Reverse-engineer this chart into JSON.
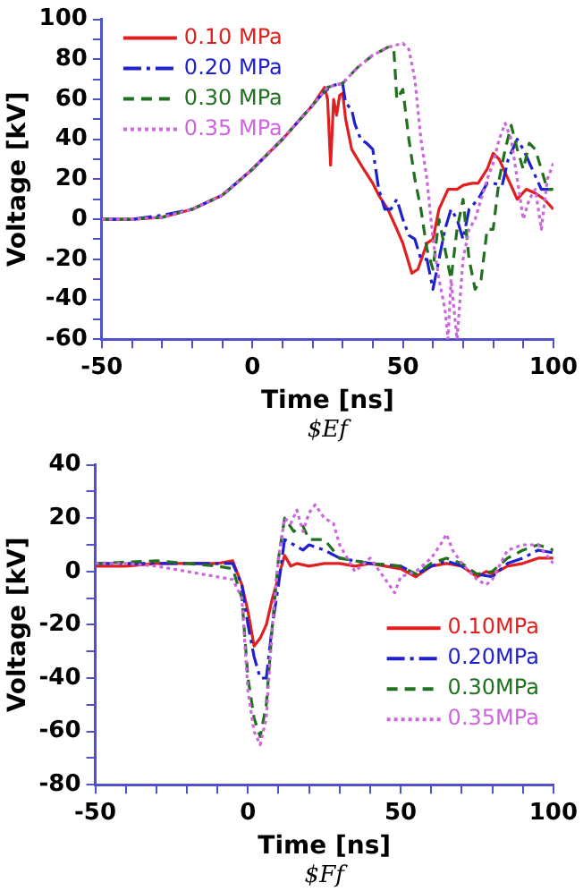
{
  "chart_data": [
    {
      "type": "line",
      "xlabel": "Time [ns]",
      "ylabel": "Voltage [kV]",
      "annotations": [
        "$Ef"
      ],
      "legend": "top left",
      "grid": false,
      "marker": "none",
      "xlim": [
        -50,
        100
      ],
      "xticks": [
        -50,
        {
          "value": -40,
          "label": null
        },
        {
          "value": -30,
          "label": null
        },
        {
          "value": -20,
          "label": null
        },
        {
          "value": -10,
          "label": null
        },
        0,
        {
          "value": 10,
          "label": null
        },
        {
          "value": 20,
          "label": null
        },
        {
          "value": 30,
          "label": null
        },
        {
          "value": 40,
          "label": null
        },
        50,
        {
          "value": 60,
          "label": null
        },
        {
          "value": 70,
          "label": null
        },
        {
          "value": 80,
          "label": null
        },
        {
          "value": 90,
          "label": null
        },
        100
      ],
      "ylim": [
        -60,
        100
      ],
      "yticks": [
        -60,
        {
          "value": -50,
          "label": null
        },
        -40,
        {
          "value": -30,
          "label": null
        },
        -20,
        {
          "value": -10,
          "label": null
        },
        0,
        {
          "value": 10,
          "label": null
        },
        20,
        {
          "value": 30,
          "label": null
        },
        40,
        {
          "value": 50,
          "label": null
        },
        60,
        {
          "value": 70,
          "label": null
        },
        80,
        {
          "value": 90,
          "label": null
        },
        100
      ],
      "series": [
        {
          "name": "0.10 MPa",
          "color": "#e02020",
          "line_style": "solid",
          "x": [
            -50,
            -40,
            -30,
            -20,
            -10,
            0,
            10,
            20,
            24,
            25,
            26,
            27,
            28,
            29,
            30,
            31,
            33,
            35,
            37,
            40,
            42,
            45,
            48,
            50,
            53,
            55,
            58,
            60,
            62,
            65,
            68,
            70,
            73,
            75,
            78,
            80,
            82,
            85,
            88,
            91,
            94,
            97,
            100
          ],
          "values": [
            0,
            0,
            1,
            5,
            12,
            25,
            40,
            57,
            66,
            60,
            27,
            60,
            52,
            62,
            63,
            50,
            35,
            30,
            25,
            18,
            12,
            5,
            -5,
            -12,
            -27,
            -25,
            -12,
            -10,
            5,
            15,
            15,
            17,
            18,
            18,
            25,
            33,
            30,
            20,
            10,
            15,
            13,
            10,
            5
          ]
        },
        {
          "name": "0.20 MPa",
          "color": "#2020cc",
          "line_style": "dashdot",
          "x": [
            -50,
            -40,
            -30,
            -20,
            -10,
            0,
            10,
            20,
            24,
            27,
            30,
            31,
            33,
            34,
            36,
            38,
            40,
            42,
            44,
            46,
            48,
            50,
            52,
            54,
            56,
            58,
            60,
            62,
            64,
            66,
            68,
            70,
            72,
            75,
            78,
            80,
            83,
            85,
            88,
            90,
            93,
            96,
            100
          ],
          "values": [
            0,
            0,
            2,
            5,
            12,
            25,
            40,
            57,
            64,
            67,
            68,
            58,
            55,
            48,
            40,
            38,
            35,
            15,
            5,
            5,
            10,
            0,
            -8,
            -10,
            -20,
            -20,
            -35,
            -20,
            -5,
            5,
            0,
            -10,
            5,
            10,
            18,
            18,
            17,
            30,
            40,
            35,
            25,
            15,
            15
          ]
        },
        {
          "name": "0.30 MPa",
          "color": "#207020",
          "line_style": "dashed",
          "x": [
            -50,
            -40,
            -30,
            -20,
            -10,
            0,
            10,
            20,
            25,
            30,
            35,
            40,
            45,
            47,
            48,
            50,
            52,
            54,
            56,
            58,
            60,
            62,
            64,
            66,
            68,
            70,
            72,
            74,
            76,
            78,
            80,
            82,
            84,
            86,
            88,
            90,
            92,
            94,
            96,
            98,
            100
          ],
          "values": [
            0,
            0,
            1,
            5,
            12,
            25,
            40,
            57,
            66,
            68,
            76,
            82,
            86,
            85,
            60,
            65,
            40,
            20,
            5,
            -15,
            -25,
            0,
            -15,
            -30,
            -5,
            10,
            -20,
            -35,
            -30,
            -5,
            -5,
            20,
            35,
            47,
            35,
            25,
            38,
            35,
            25,
            15,
            15
          ]
        },
        {
          "name": "0.35 MPa",
          "color": "#cc66dd",
          "line_style": "dotted",
          "x": [
            -50,
            -40,
            -30,
            -20,
            -10,
            0,
            10,
            20,
            25,
            30,
            35,
            40,
            45,
            50,
            52,
            54,
            56,
            58,
            60,
            62,
            64,
            65,
            66,
            68,
            70,
            72,
            74,
            76,
            78,
            80,
            82,
            84,
            86,
            88,
            90,
            92,
            94,
            96,
            98,
            100
          ],
          "values": [
            0,
            0,
            1,
            5,
            12,
            25,
            40,
            57,
            66,
            68,
            76,
            82,
            86,
            88,
            85,
            70,
            40,
            20,
            -10,
            -30,
            -45,
            -60,
            -30,
            -60,
            -20,
            -5,
            0,
            10,
            20,
            28,
            40,
            48,
            40,
            20,
            0,
            10,
            15,
            -5,
            20,
            28
          ]
        }
      ]
    },
    {
      "type": "line",
      "xlabel": "Time [ns]",
      "ylabel": "Voltage [kV]",
      "annotations": [
        "$Ff"
      ],
      "legend": "bottom right",
      "grid": false,
      "marker": "none",
      "xlim": [
        -50,
        100
      ],
      "xticks": [
        -50,
        {
          "value": -40,
          "label": null
        },
        {
          "value": -30,
          "label": null
        },
        {
          "value": -20,
          "label": null
        },
        {
          "value": -10,
          "label": null
        },
        0,
        {
          "value": 10,
          "label": null
        },
        {
          "value": 20,
          "label": null
        },
        {
          "value": 30,
          "label": null
        },
        {
          "value": 40,
          "label": null
        },
        50,
        {
          "value": 60,
          "label": null
        },
        {
          "value": 70,
          "label": null
        },
        {
          "value": 80,
          "label": null
        },
        {
          "value": 90,
          "label": null
        },
        100
      ],
      "ylim": [
        -80,
        40
      ],
      "yticks": [
        -80,
        {
          "value": -70,
          "label": null
        },
        -60,
        {
          "value": -50,
          "label": null
        },
        -40,
        {
          "value": -30,
          "label": null
        },
        -20,
        {
          "value": -10,
          "label": null
        },
        0,
        {
          "value": 10,
          "label": null
        },
        20,
        {
          "value": 30,
          "label": null
        },
        40
      ],
      "series": [
        {
          "name": "0.10MPa",
          "color": "#e02020",
          "line_style": "solid",
          "x": [
            -50,
            -40,
            -30,
            -20,
            -10,
            -5,
            -2,
            0,
            2,
            4,
            6,
            8,
            10,
            12,
            14,
            16,
            20,
            25,
            30,
            35,
            40,
            45,
            50,
            55,
            60,
            65,
            70,
            75,
            78,
            80,
            85,
            90,
            95,
            100
          ],
          "values": [
            2,
            2,
            3,
            3,
            3,
            4,
            -5,
            -15,
            -28,
            -25,
            -20,
            -10,
            -2,
            6,
            2,
            3,
            2,
            3,
            3,
            2,
            3,
            2,
            1,
            -2,
            2,
            3,
            2,
            -2,
            0,
            -1,
            2,
            3,
            5,
            5
          ]
        },
        {
          "name": "0.20MPa",
          "color": "#2020cc",
          "line_style": "dashdot",
          "x": [
            -50,
            -40,
            -10,
            -5,
            -2,
            0,
            2,
            4,
            6,
            8,
            10,
            12,
            15,
            18,
            20,
            25,
            30,
            40,
            50,
            55,
            60,
            65,
            70,
            75,
            80,
            85,
            90,
            95,
            100
          ],
          "values": [
            3,
            3,
            3,
            3,
            -5,
            -20,
            -32,
            -40,
            -40,
            -20,
            -5,
            12,
            10,
            8,
            10,
            8,
            5,
            3,
            2,
            -1,
            2,
            4,
            2,
            -1,
            -2,
            3,
            5,
            8,
            7
          ]
        },
        {
          "name": "0.30MPa",
          "color": "#207020",
          "line_style": "dashed",
          "x": [
            -50,
            -30,
            -10,
            -5,
            -2,
            0,
            2,
            4,
            6,
            8,
            10,
            12,
            15,
            18,
            20,
            25,
            30,
            40,
            50,
            55,
            60,
            65,
            70,
            75,
            80,
            85,
            90,
            95,
            100
          ],
          "values": [
            3,
            4,
            2,
            1,
            -10,
            -40,
            -55,
            -62,
            -50,
            -20,
            5,
            20,
            15,
            17,
            12,
            12,
            5,
            3,
            2,
            -1,
            3,
            5,
            3,
            -1,
            0,
            5,
            8,
            10,
            8
          ]
        },
        {
          "name": "0.35MPa",
          "color": "#cc66dd",
          "line_style": "dotted",
          "x": [
            -50,
            -40,
            -30,
            -20,
            -10,
            -5,
            -2,
            0,
            2,
            4,
            6,
            8,
            10,
            12,
            14,
            16,
            18,
            20,
            22,
            25,
            28,
            30,
            35,
            40,
            45,
            48,
            50,
            55,
            60,
            63,
            65,
            67,
            70,
            75,
            78,
            80,
            85,
            90,
            95,
            100
          ],
          "values": [
            3,
            3,
            2,
            0,
            -2,
            -3,
            -10,
            -45,
            -60,
            -65,
            -55,
            -20,
            5,
            20,
            18,
            23,
            15,
            22,
            25,
            20,
            18,
            10,
            0,
            5,
            -3,
            -8,
            -2,
            0,
            5,
            10,
            14,
            8,
            3,
            -3,
            -5,
            -3,
            8,
            10,
            10,
            3
          ]
        }
      ]
    }
  ]
}
